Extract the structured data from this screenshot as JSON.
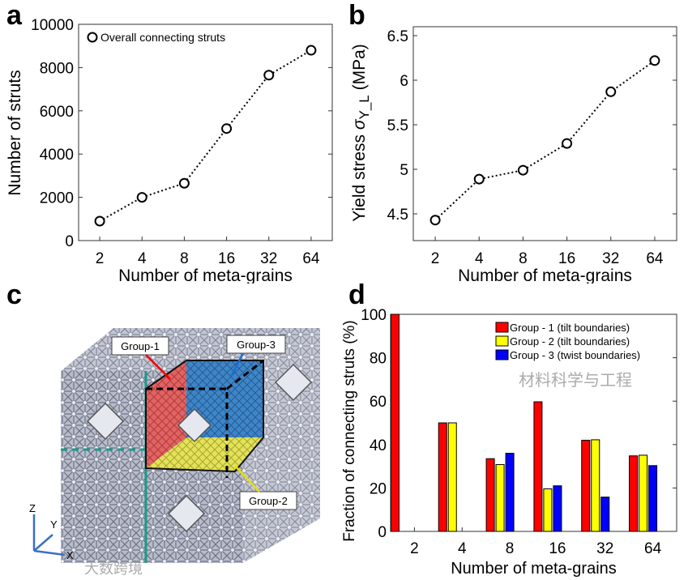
{
  "panels": {
    "a": "a",
    "b": "b",
    "c": "c",
    "d": "d"
  },
  "chart_data": [
    {
      "id": "a",
      "type": "line",
      "title": "",
      "x": [
        "2",
        "4",
        "8",
        "16",
        "32",
        "64"
      ],
      "xlabel": "Number of meta-grains",
      "ylabel": "Number of struts",
      "ylim": [
        0,
        10000
      ],
      "yticks": [
        "0",
        "2000",
        "4000",
        "6000",
        "8000",
        "10000"
      ],
      "legend": "top-left",
      "series": [
        {
          "name": "Overall connecting struts",
          "values": [
            900,
            2000,
            2650,
            5180,
            7650,
            8800
          ]
        }
      ]
    },
    {
      "id": "b",
      "type": "line",
      "title": "",
      "x": [
        "2",
        "4",
        "8",
        "16",
        "32",
        "64"
      ],
      "xlabel": "Number of meta-grains",
      "ylabel": "Yield stress σY_L (MPa)",
      "ylabel_parts": {
        "main": "Yield stress ",
        "sigma": "σ",
        "sub": "Y_L",
        "unit": " (MPa)"
      },
      "ylim": [
        4.2,
        6.6
      ],
      "yticks": [
        "4.5",
        "5",
        "5.5",
        "6",
        "6.5"
      ],
      "series": [
        {
          "name": "Yield stress",
          "values": [
            4.43,
            4.89,
            4.99,
            5.29,
            5.87,
            6.22
          ]
        }
      ]
    },
    {
      "id": "d",
      "type": "bar",
      "title": "",
      "categories": [
        "2",
        "4",
        "8",
        "16",
        "32",
        "64"
      ],
      "xlabel": "Number of meta-grains",
      "ylabel": "Fraction of connecting struts (%)",
      "ylim": [
        0,
        100
      ],
      "yticks": [
        "0",
        "20",
        "40",
        "60",
        "80",
        "100"
      ],
      "legend": "top-right",
      "series": [
        {
          "name": "Group - 1 (tilt boundaries)",
          "color": "#ff0000",
          "values": [
            100,
            50,
            33.5,
            59.7,
            42,
            34.8
          ]
        },
        {
          "name": "Group - 2 (tilt boundaries)",
          "color": "#ffff00",
          "values": [
            0,
            50,
            30.8,
            19.6,
            42.2,
            35.1
          ]
        },
        {
          "name": "Group - 3 (twist boundaries)",
          "color": "#0000ff",
          "values": [
            0,
            0,
            36,
            21,
            15.8,
            30.3
          ]
        }
      ]
    }
  ],
  "panel_c": {
    "labels": [
      "Group-1",
      "Group-2",
      "Group-3"
    ],
    "axes": [
      "Z",
      "Y",
      "X"
    ]
  },
  "watermarks": {
    "left": "大数跨境",
    "right": "材料科学与工程"
  }
}
